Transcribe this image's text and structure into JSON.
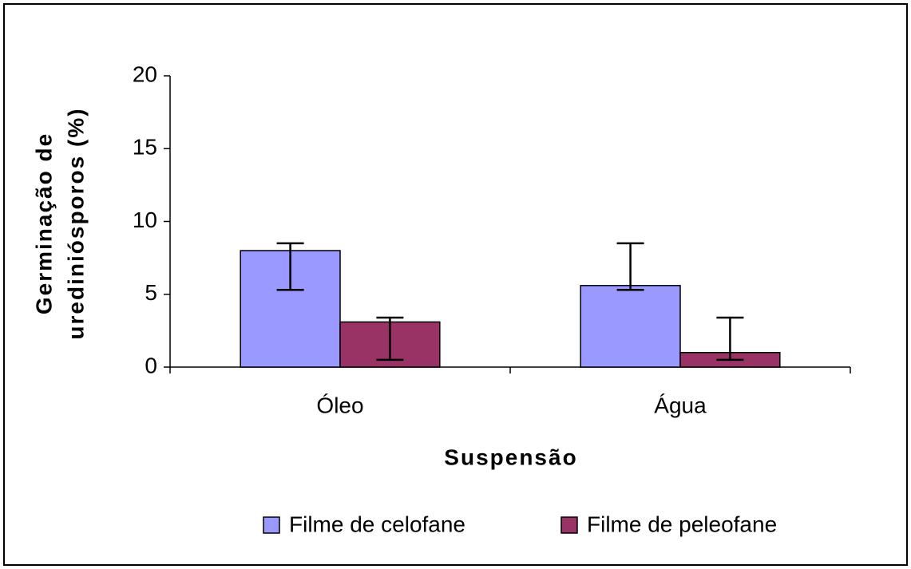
{
  "chart_data": {
    "type": "bar",
    "x_label": "Suspensão",
    "y_label": [
      "Germinação de",
      "urediniósporos (%)"
    ],
    "categories": [
      "Óleo",
      "Água"
    ],
    "series": [
      {
        "name": "Filme de celofane",
        "color": "#9999ff",
        "values": [
          8.0,
          5.6
        ],
        "error_lower": [
          5.3,
          5.3
        ],
        "error_upper": [
          8.5,
          8.5
        ]
      },
      {
        "name": "Filme de peleofane",
        "color": "#993366",
        "values": [
          3.1,
          1.0
        ],
        "error_lower": [
          0.5,
          0.5
        ],
        "error_upper": [
          3.4,
          3.4
        ]
      }
    ],
    "ylim": [
      0,
      20
    ],
    "yticks": [
      0,
      5,
      10,
      15,
      20
    ],
    "grid": false,
    "legend": "bottom"
  }
}
